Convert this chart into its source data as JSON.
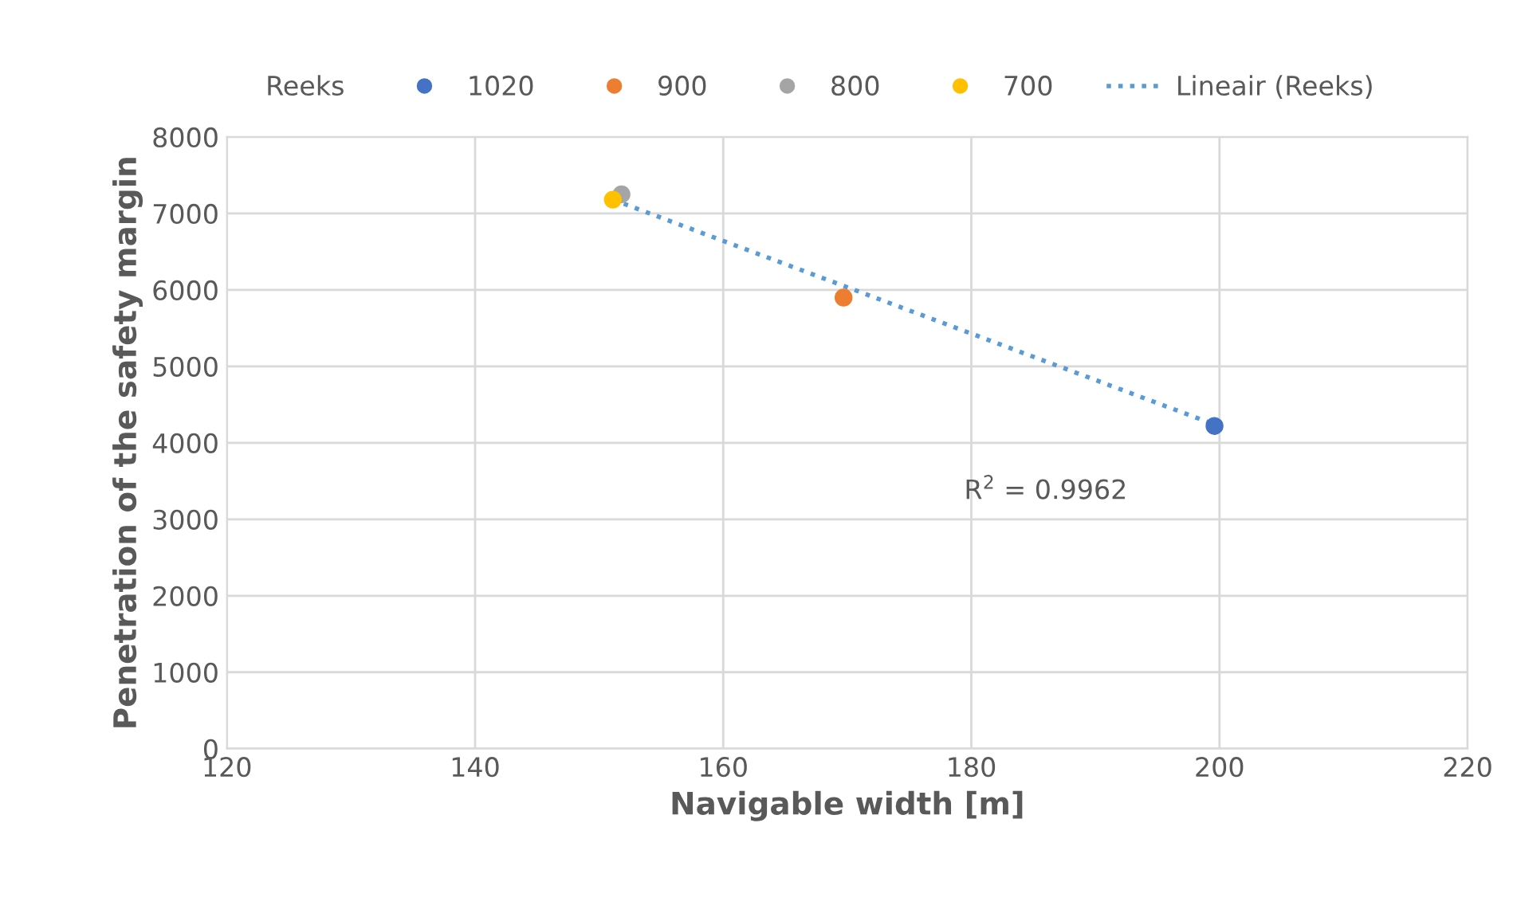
{
  "chart_data": {
    "type": "scatter",
    "xlabel": "Navigable width [m]",
    "ylabel": "Penetration of the safety margin",
    "legend_title": "Reeks",
    "legend": "top",
    "grid": true,
    "marker": "circle",
    "xlim": [
      120,
      220
    ],
    "xticks": [
      120,
      140,
      160,
      180,
      200,
      220
    ],
    "ylim": [
      0,
      8000
    ],
    "yticks": [
      0,
      1000,
      2000,
      3000,
      4000,
      5000,
      6000,
      7000,
      8000
    ],
    "series": [
      {
        "name": "1020",
        "color": "#4472c4",
        "x": [
          199.6
        ],
        "values": [
          4220
        ]
      },
      {
        "name": "900",
        "color": "#ed7d31",
        "x": [
          169.7
        ],
        "values": [
          5900
        ]
      },
      {
        "name": "800",
        "color": "#a5a5a5",
        "x": [
          151.8
        ],
        "values": [
          7250
        ]
      },
      {
        "name": "700",
        "color": "#ffc000",
        "x": [
          151.1
        ],
        "values": [
          7180
        ]
      },
      {
        "name": "Lineair (Reeks)",
        "type": "line",
        "line_style": "dotted",
        "marker": "none",
        "color": "#5b9bd5",
        "x": [
          151.1,
          199.6
        ],
        "values": [
          7180,
          4240
        ]
      }
    ],
    "annotations": [
      "R$^{2}$ = 0.9962"
    ]
  }
}
